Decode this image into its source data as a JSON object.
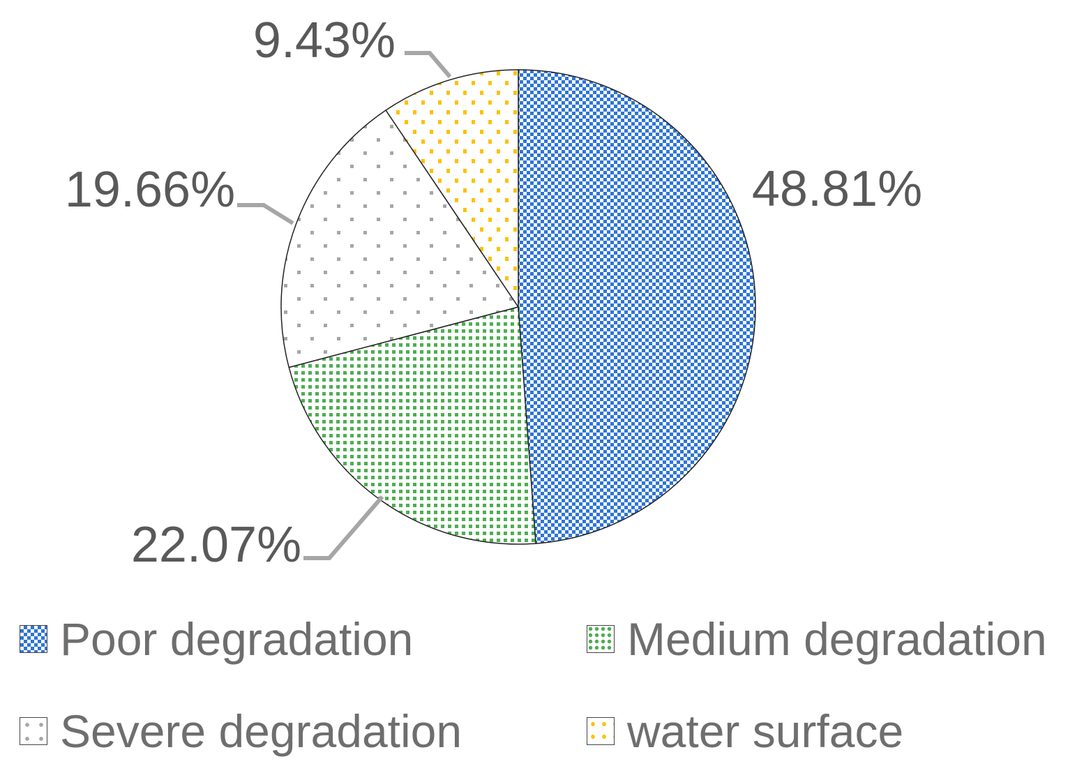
{
  "chart_data": {
    "type": "pie",
    "categories": [
      "Poor degradation",
      "Medium degradation",
      "Severe degradation",
      "water surface"
    ],
    "values": [
      48.81,
      22.07,
      19.66,
      9.43
    ],
    "value_labels": [
      "48.81%",
      "22.07%",
      "19.66%",
      "9.43%"
    ],
    "colors": [
      "#2E75D6",
      "#4CAF50",
      "#A6A6A6",
      "#FFC000"
    ],
    "legend_position": "bottom",
    "title": ""
  }
}
